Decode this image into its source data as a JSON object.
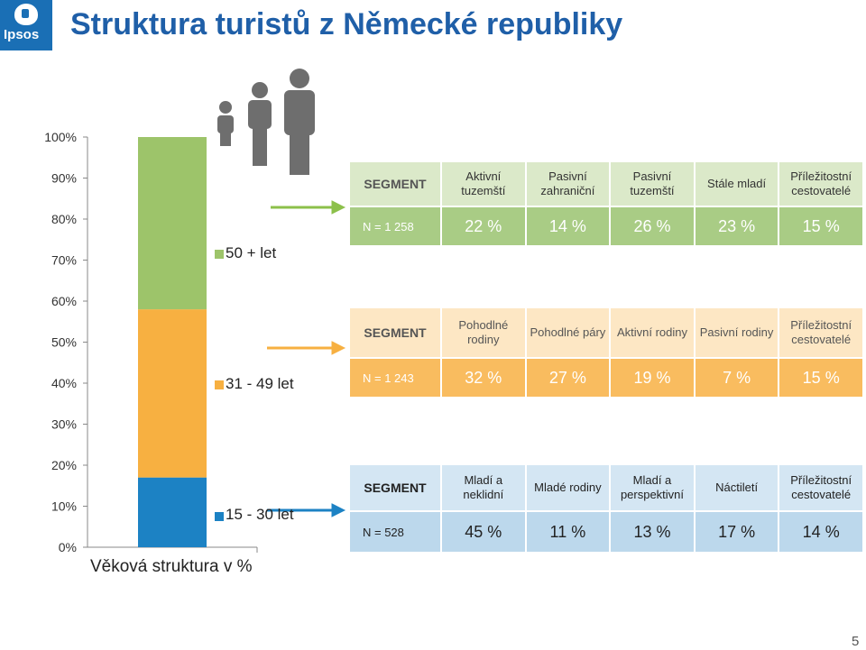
{
  "header": {
    "title": "Struktura turistů z Německé republiky",
    "logo_text": "Ipsos",
    "page_number": "5"
  },
  "colors": {
    "green": "#9dc46a",
    "orange": "#f7b041",
    "blue": "#1c82c4",
    "arrow": "#8cc04a",
    "logo": "#1a6fb5",
    "title": "#1f5fa8"
  },
  "chart_data": {
    "type": "bar",
    "stacked": true,
    "title": "",
    "xlabel": "Věková struktura v %",
    "ylabel": "",
    "ylim": [
      0,
      100
    ],
    "yticks": [
      "0%",
      "10%",
      "20%",
      "30%",
      "40%",
      "50%",
      "60%",
      "70%",
      "80%",
      "90%",
      "100%"
    ],
    "grid": false,
    "categories": [
      ""
    ],
    "series": [
      {
        "name": "15 - 30 let",
        "values": [
          17
        ],
        "color": "#1c82c4"
      },
      {
        "name": "31 - 49 let",
        "values": [
          41
        ],
        "color": "#f7b041"
      },
      {
        "name": "50 + let",
        "values": [
          42
        ],
        "color": "#9dc46a"
      }
    ]
  },
  "segments": [
    {
      "id": "t1",
      "segment_label": "SEGMENT",
      "n_label": "N = 1 258",
      "headers": [
        "Aktivní tuzemští",
        "Pasivní zahraniční",
        "Pasivní tuzemští",
        "Stále mladí",
        "Příležitostní cestovatelé"
      ],
      "values": [
        "22 %",
        "14 %",
        "26 %",
        "23 %",
        "15 %"
      ]
    },
    {
      "id": "t2",
      "segment_label": "SEGMENT",
      "n_label": "N = 1 243",
      "headers": [
        "Pohodlné rodiny",
        "Pohodlné páry",
        "Aktivní rodiny",
        "Pasivní rodiny",
        "Příležitostní cestovatelé"
      ],
      "values": [
        "32 %",
        "27 %",
        "19 %",
        "7 %",
        "15 %"
      ]
    },
    {
      "id": "t3",
      "segment_label": "SEGMENT",
      "n_label": "N = 528",
      "headers": [
        "Mladí a neklidní",
        "Mladé rodiny",
        "Mladí a perspektivní",
        "Náctiletí",
        "Příležitostní cestovatelé"
      ],
      "values": [
        "45 %",
        "11 %",
        "13 %",
        "17 %",
        "14 %"
      ]
    }
  ]
}
